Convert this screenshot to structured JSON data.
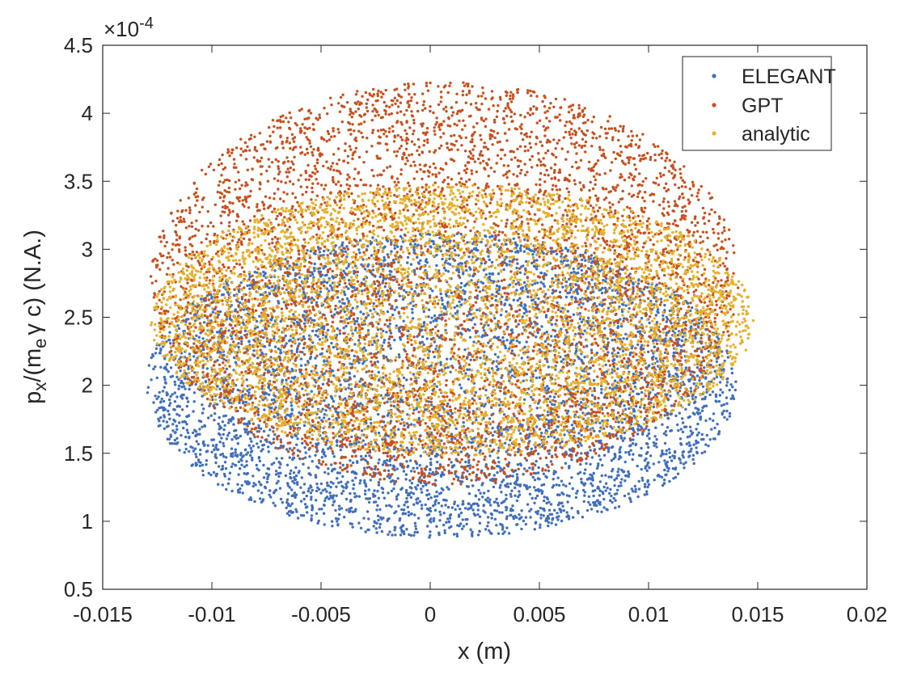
{
  "chart_data": {
    "type": "scatter",
    "xlabel": "x (m)",
    "ylabel": {
      "p": "p",
      "x_sub": "x",
      "mid1": "/(m",
      "e_sub": "e",
      "gamma": "γ",
      "mid2": " c) (N.A.)"
    },
    "y_exponent": {
      "prefix": "×10",
      "power": "-4"
    },
    "xlim": [
      -0.015,
      0.02
    ],
    "ylim": [
      0.5,
      4.5
    ],
    "y_scale": 0.0001,
    "xticks": [
      -0.015,
      -0.01,
      -0.005,
      0,
      0.005,
      0.01,
      0.015,
      0.02
    ],
    "xtick_labels": [
      "-0.015",
      "-0.01",
      "-0.005",
      "0",
      "0.005",
      "0.01",
      "0.015",
      "0.02"
    ],
    "yticks": [
      0.5,
      1,
      1.5,
      2,
      2.5,
      3,
      3.5,
      4,
      4.5
    ],
    "ytick_labels": [
      "0.5",
      "1",
      "1.5",
      "2",
      "2.5",
      "3",
      "3.5",
      "4",
      "4.5"
    ],
    "grid": false,
    "legend_position": "top-right",
    "series": [
      {
        "name": "ELEGANT",
        "color": "#3F6FBD",
        "distribution": "ellipse",
        "x_center": 0.0005,
        "x_halfwidth": 0.0135,
        "y_center": 2.0,
        "y_halfheight": 1.12,
        "count": 5200
      },
      {
        "name": "GPT",
        "color": "#C8501E",
        "distribution": "ellipse",
        "x_center": 0.0007,
        "x_halfwidth": 0.0135,
        "y_center": 2.75,
        "y_halfheight": 1.48,
        "count": 5200
      },
      {
        "name": "analytic",
        "color": "#E5B12E",
        "distribution": "ellipse",
        "x_center": 0.001,
        "x_halfwidth": 0.0138,
        "y_center": 2.48,
        "y_halfheight": 1.0,
        "count": 5200
      }
    ],
    "legend": [
      "ELEGANT",
      "GPT",
      "analytic"
    ]
  }
}
